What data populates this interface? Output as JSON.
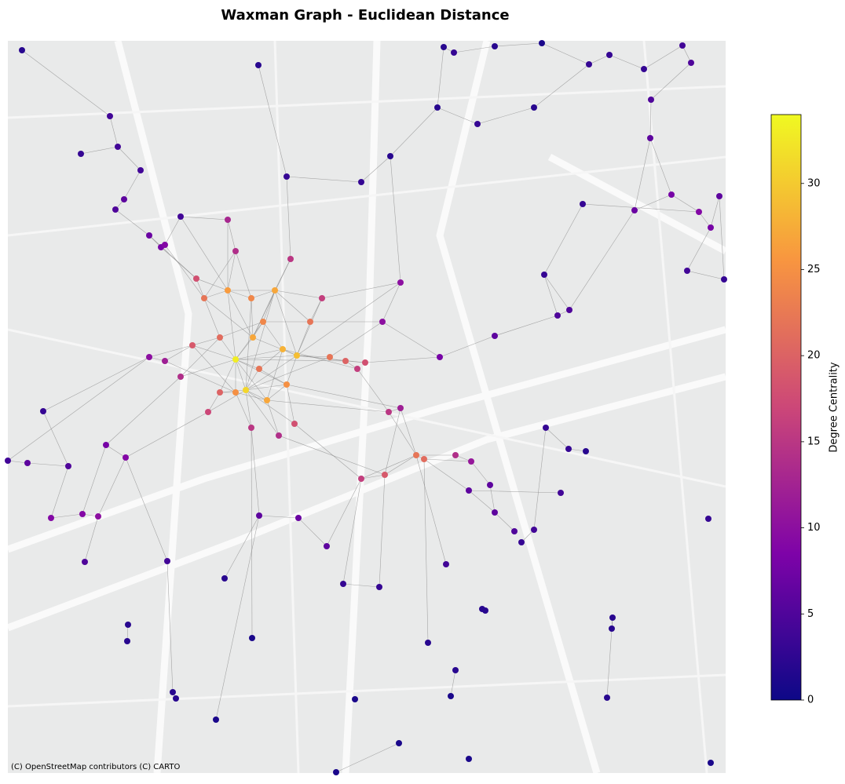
{
  "chart_data": {
    "type": "network",
    "title": "Waxman Graph - Euclidean Distance",
    "colorbar_label": "Degree Centrality",
    "attribution": "(C) OpenStreetMap contributors (C) CARTO",
    "colormap": "plasma",
    "clim": [
      0,
      34
    ],
    "cticks": [
      0,
      5,
      10,
      15,
      20,
      25,
      30
    ],
    "xlim": [
      10,
      924
    ],
    "ylim": [
      985,
      52
    ],
    "edge_color": "#888888",
    "nodes": {
      "x": [
        300,
        313,
        378,
        322,
        290,
        350,
        335,
        360,
        300,
        340,
        260,
        280,
        245,
        320,
        395,
        330,
        365,
        280,
        250,
        370,
        300,
        410,
        440,
        465,
        455,
        420,
        230,
        210,
        190,
        265,
        320,
        355,
        375,
        290,
        530,
        540,
        490,
        460,
        495,
        510,
        580,
        600,
        510,
        487,
        560,
        597,
        630,
        710,
        725,
        140,
        150,
        103,
        179,
        158,
        147,
        190,
        205,
        210,
        230,
        28,
        329,
        365,
        460,
        497,
        10,
        35,
        65,
        105,
        125,
        108,
        87,
        55,
        135,
        160,
        213,
        286,
        330,
        380,
        416,
        565,
        578,
        630,
        690,
        750,
        776,
        820,
        869,
        880,
        829,
        828,
        808,
        855,
        890,
        905,
        916,
        875,
        922,
        742,
        693,
        557,
        608,
        680,
        163,
        162,
        220,
        224,
        275,
        321,
        437,
        483,
        545,
        580,
        574,
        508,
        452,
        428,
        597,
        614,
        618,
        664,
        680,
        695,
        724,
        746,
        714,
        773,
        780,
        779,
        902,
        905,
        568,
        655,
        630,
        624
      ],
      "y": [
        458,
        497,
        453,
        430,
        370,
        370,
        410,
        445,
        500,
        510,
        380,
        430,
        440,
        380,
        410,
        470,
        490,
        500,
        355,
        330,
        320,
        380,
        460,
        462,
        470,
        455,
        480,
        460,
        455,
        525,
        545,
        555,
        540,
        280,
        580,
        585,
        605,
        610,
        525,
        520,
        580,
        588,
        360,
        410,
        455,
        625,
        428,
        402,
        395,
        148,
        187,
        196,
        217,
        254,
        267,
        300,
        315,
        312,
        276,
        64,
        83,
        225,
        232,
        199,
        587,
        590,
        660,
        655,
        658,
        716,
        594,
        524,
        567,
        583,
        715,
        737,
        657,
        660,
        696,
        60,
        67,
        59,
        55,
        82,
        70,
        88,
        58,
        80,
        127,
        176,
        268,
        248,
        270,
        290,
        250,
        345,
        356,
        260,
        350,
        137,
        158,
        137,
        796,
        817,
        882,
        890,
        917,
        813,
        744,
        748,
        819,
        854,
        887,
        947,
        891,
        984,
        967,
        776,
        778,
        691,
        675,
        545,
        572,
        575,
        628,
        889,
        787,
        801,
        661,
        972,
        719,
        677,
        653,
        618
      ],
      "degree": [
        33,
        31,
        29,
        27,
        26,
        27,
        24,
        28,
        25,
        27,
        22,
        21,
        19,
        24,
        22,
        22,
        25,
        20,
        18,
        15,
        14,
        16,
        20,
        18,
        16,
        22,
        14,
        12,
        10,
        17,
        15,
        14,
        18,
        13,
        22,
        21,
        19,
        16,
        15,
        12,
        14,
        11,
        10,
        10,
        8,
        6,
        6,
        5,
        5,
        4,
        4,
        3,
        4,
        6,
        5,
        7,
        8,
        9,
        4,
        2,
        2,
        3,
        3,
        2,
        4,
        6,
        9,
        9,
        10,
        5,
        5,
        3,
        8,
        9,
        4,
        2,
        6,
        7,
        6,
        2,
        3,
        2,
        1,
        3,
        3,
        3,
        4,
        5,
        5,
        6,
        7,
        8,
        9,
        8,
        6,
        4,
        3,
        3,
        3,
        2,
        3,
        2,
        2,
        2,
        2,
        2,
        1,
        1,
        3,
        3,
        2,
        2,
        1,
        1,
        1,
        1,
        1,
        2,
        2,
        3,
        4,
        3,
        3,
        2,
        4,
        2,
        2,
        2,
        3,
        1,
        4,
        5,
        6,
        6
      ]
    },
    "edges": [
      [
        0,
        1
      ],
      [
        0,
        2
      ],
      [
        0,
        3
      ],
      [
        0,
        4
      ],
      [
        0,
        6
      ],
      [
        0,
        7
      ],
      [
        0,
        8
      ],
      [
        0,
        9
      ],
      [
        0,
        11
      ],
      [
        0,
        12
      ],
      [
        0,
        15
      ],
      [
        0,
        16
      ],
      [
        0,
        17
      ],
      [
        0,
        22
      ],
      [
        0,
        26
      ],
      [
        1,
        2
      ],
      [
        1,
        5
      ],
      [
        1,
        9
      ],
      [
        1,
        13
      ],
      [
        1,
        15
      ],
      [
        1,
        16
      ],
      [
        1,
        17
      ],
      [
        1,
        29
      ],
      [
        1,
        30
      ],
      [
        1,
        31
      ],
      [
        1,
        32
      ],
      [
        1,
        25
      ],
      [
        2,
        3
      ],
      [
        2,
        5
      ],
      [
        2,
        7
      ],
      [
        2,
        14
      ],
      [
        2,
        16
      ],
      [
        2,
        21
      ],
      [
        2,
        22
      ],
      [
        2,
        23
      ],
      [
        2,
        25
      ],
      [
        2,
        42
      ],
      [
        3,
        4
      ],
      [
        3,
        5
      ],
      [
        3,
        6
      ],
      [
        3,
        10
      ],
      [
        3,
        13
      ],
      [
        3,
        19
      ],
      [
        4,
        5
      ],
      [
        4,
        10
      ],
      [
        4,
        13
      ],
      [
        4,
        18
      ],
      [
        4,
        20
      ],
      [
        4,
        33
      ],
      [
        5,
        6
      ],
      [
        5,
        13
      ],
      [
        5,
        14
      ],
      [
        5,
        19
      ],
      [
        5,
        21
      ],
      [
        6,
        7
      ],
      [
        6,
        11
      ],
      [
        6,
        14
      ],
      [
        7,
        9
      ],
      [
        7,
        15
      ],
      [
        7,
        24
      ],
      [
        8,
        9
      ],
      [
        8,
        12
      ],
      [
        8,
        17
      ],
      [
        8,
        27
      ],
      [
        8,
        30
      ],
      [
        9,
        16
      ],
      [
        9,
        31
      ],
      [
        9,
        38
      ],
      [
        10,
        11
      ],
      [
        10,
        18
      ],
      [
        10,
        20
      ],
      [
        11,
        12
      ],
      [
        11,
        26
      ],
      [
        12,
        27
      ],
      [
        12,
        28
      ],
      [
        13,
        20
      ],
      [
        14,
        21
      ],
      [
        14,
        43
      ],
      [
        15,
        16
      ],
      [
        16,
        32
      ],
      [
        16,
        39
      ],
      [
        17,
        29
      ],
      [
        18,
        55
      ],
      [
        19,
        61
      ],
      [
        20,
        33
      ],
      [
        21,
        42
      ],
      [
        22,
        23
      ],
      [
        22,
        24
      ],
      [
        23,
        44
      ],
      [
        24,
        38
      ],
      [
        25,
        43
      ],
      [
        26,
        72
      ],
      [
        27,
        28
      ],
      [
        28,
        71
      ],
      [
        29,
        73
      ],
      [
        30,
        76
      ],
      [
        31,
        36
      ],
      [
        32,
        37
      ],
      [
        33,
        58
      ],
      [
        34,
        35
      ],
      [
        34,
        36
      ],
      [
        34,
        37
      ],
      [
        34,
        38
      ],
      [
        34,
        39
      ],
      [
        34,
        40
      ],
      [
        35,
        41
      ],
      [
        35,
        45
      ],
      [
        36,
        37
      ],
      [
        36,
        39
      ],
      [
        38,
        39
      ],
      [
        40,
        41
      ],
      [
        41,
        133
      ],
      [
        42,
        43
      ],
      [
        42,
        63
      ],
      [
        43,
        44
      ],
      [
        44,
        46
      ],
      [
        46,
        47
      ],
      [
        47,
        48
      ],
      [
        48,
        98
      ],
      [
        45,
        132
      ],
      [
        49,
        50
      ],
      [
        50,
        51
      ],
      [
        50,
        52
      ],
      [
        52,
        53
      ],
      [
        53,
        54
      ],
      [
        54,
        55
      ],
      [
        55,
        56
      ],
      [
        56,
        57
      ],
      [
        57,
        58
      ],
      [
        58,
        4
      ],
      [
        57,
        10
      ],
      [
        56,
        18
      ],
      [
        49,
        59
      ],
      [
        64,
        65
      ],
      [
        65,
        70
      ],
      [
        66,
        67
      ],
      [
        67,
        68
      ],
      [
        68,
        69
      ],
      [
        66,
        70
      ],
      [
        70,
        71
      ],
      [
        72,
        73
      ],
      [
        68,
        73
      ],
      [
        73,
        74
      ],
      [
        67,
        72
      ],
      [
        64,
        28
      ],
      [
        75,
        76
      ],
      [
        76,
        77
      ],
      [
        77,
        78
      ],
      [
        78,
        37
      ],
      [
        108,
        109
      ],
      [
        108,
        37
      ],
      [
        109,
        36
      ],
      [
        110,
        35
      ],
      [
        74,
        104
      ],
      [
        104,
        105
      ],
      [
        102,
        103
      ],
      [
        106,
        76
      ],
      [
        107,
        30
      ],
      [
        111,
        112
      ],
      [
        113,
        115
      ],
      [
        130,
        34
      ],
      [
        131,
        132
      ],
      [
        132,
        133
      ],
      [
        119,
        120
      ],
      [
        120,
        121
      ],
      [
        121,
        122
      ],
      [
        122,
        123
      ],
      [
        124,
        45
      ],
      [
        117,
        118
      ],
      [
        125,
        126
      ],
      [
        126,
        127
      ],
      [
        79,
        80
      ],
      [
        80,
        81
      ],
      [
        81,
        82
      ],
      [
        82,
        83
      ],
      [
        83,
        84
      ],
      [
        84,
        85
      ],
      [
        85,
        86
      ],
      [
        86,
        87
      ],
      [
        87,
        88
      ],
      [
        88,
        89
      ],
      [
        89,
        90
      ],
      [
        89,
        91
      ],
      [
        90,
        91
      ],
      [
        91,
        92
      ],
      [
        92,
        93
      ],
      [
        93,
        94
      ],
      [
        93,
        95
      ],
      [
        95,
        96
      ],
      [
        92,
        97
      ],
      [
        97,
        98
      ],
      [
        98,
        47
      ],
      [
        99,
        100
      ],
      [
        100,
        101
      ],
      [
        101,
        83
      ],
      [
        99,
        63
      ],
      [
        62,
        63
      ],
      [
        61,
        62
      ],
      [
        79,
        99
      ],
      [
        60,
        61
      ],
      [
        90,
        48
      ],
      [
        94,
        96
      ]
    ]
  }
}
